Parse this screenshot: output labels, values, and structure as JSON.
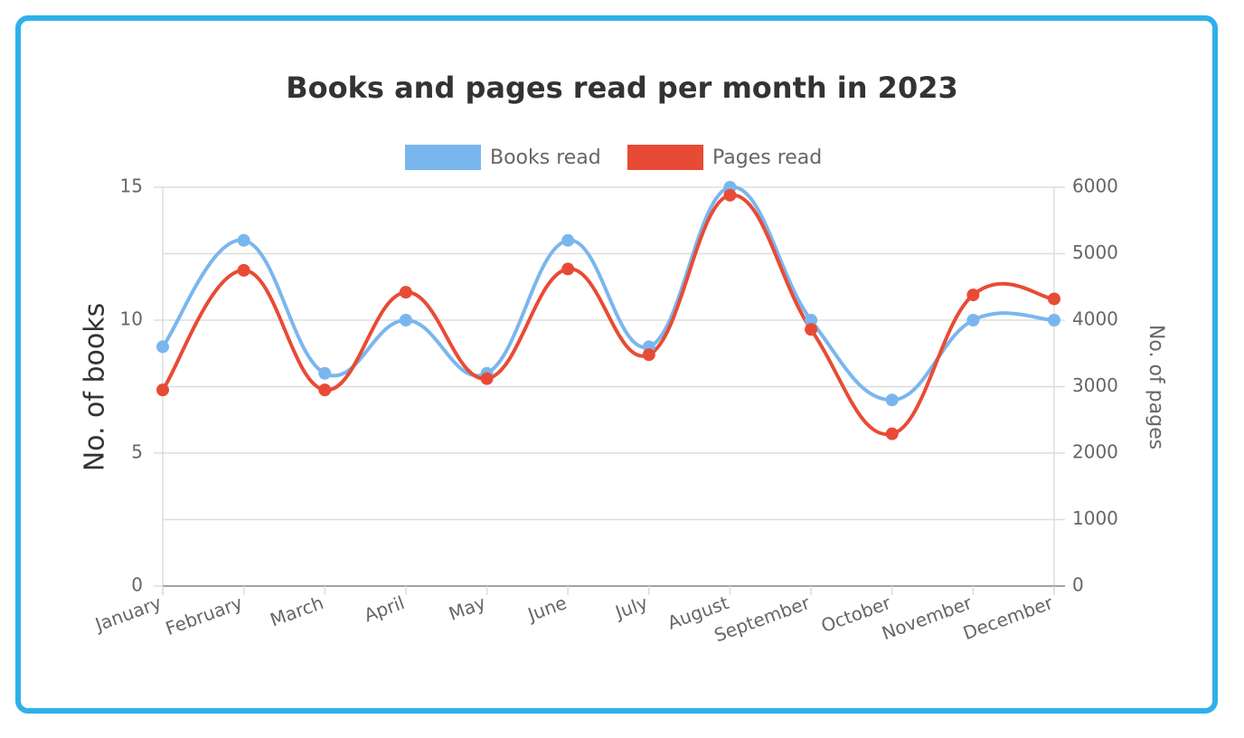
{
  "chart_data": {
    "type": "line",
    "title": "Books and pages read per month in 2023",
    "categories": [
      "January",
      "February",
      "March",
      "April",
      "May",
      "June",
      "July",
      "August",
      "September",
      "October",
      "November",
      "December"
    ],
    "series": [
      {
        "name": "Books read",
        "axis": "left",
        "color": "#7ab6ee",
        "values": [
          9,
          13,
          8,
          10,
          8,
          13,
          9,
          15,
          10,
          7,
          10,
          10
        ]
      },
      {
        "name": "Pages read",
        "axis": "right",
        "color": "#e84b35",
        "values": [
          2950,
          4750,
          2950,
          4420,
          3120,
          4770,
          3480,
          5880,
          3860,
          2290,
          4380,
          4320
        ]
      }
    ],
    "y_left": {
      "label": "No. of books",
      "range": [
        0,
        15
      ],
      "ticks": [
        0,
        5,
        10,
        15
      ]
    },
    "y_right": {
      "label": "No. of pages",
      "range": [
        0,
        6000
      ],
      "ticks": [
        0,
        1000,
        2000,
        3000,
        4000,
        5000,
        6000
      ]
    },
    "grid": true,
    "legend_position": "top-center",
    "smooth": true
  }
}
